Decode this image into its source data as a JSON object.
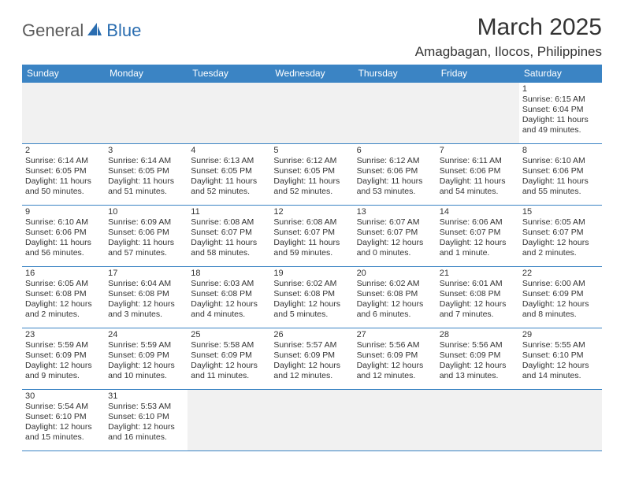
{
  "logo": {
    "textDark": "General",
    "textBlue": "Blue"
  },
  "title": "March 2025",
  "location": "Amagbagan, Ilocos, Philippines",
  "colors": {
    "headerBg": "#3b84c4",
    "headerText": "#ffffff",
    "cellBorder": "#3b84c4",
    "emptyBg": "#f1f1f1",
    "text": "#333333",
    "logoGray": "#5b5b5b",
    "logoBlue": "#2a6db0"
  },
  "daysOfWeek": [
    "Sunday",
    "Monday",
    "Tuesday",
    "Wednesday",
    "Thursday",
    "Friday",
    "Saturday"
  ],
  "leadingBlanks": 6,
  "days": [
    {
      "n": 1,
      "sunrise": "6:15 AM",
      "sunset": "6:04 PM",
      "daylight": "11 hours and 49 minutes."
    },
    {
      "n": 2,
      "sunrise": "6:14 AM",
      "sunset": "6:05 PM",
      "daylight": "11 hours and 50 minutes."
    },
    {
      "n": 3,
      "sunrise": "6:14 AM",
      "sunset": "6:05 PM",
      "daylight": "11 hours and 51 minutes."
    },
    {
      "n": 4,
      "sunrise": "6:13 AM",
      "sunset": "6:05 PM",
      "daylight": "11 hours and 52 minutes."
    },
    {
      "n": 5,
      "sunrise": "6:12 AM",
      "sunset": "6:05 PM",
      "daylight": "11 hours and 52 minutes."
    },
    {
      "n": 6,
      "sunrise": "6:12 AM",
      "sunset": "6:06 PM",
      "daylight": "11 hours and 53 minutes."
    },
    {
      "n": 7,
      "sunrise": "6:11 AM",
      "sunset": "6:06 PM",
      "daylight": "11 hours and 54 minutes."
    },
    {
      "n": 8,
      "sunrise": "6:10 AM",
      "sunset": "6:06 PM",
      "daylight": "11 hours and 55 minutes."
    },
    {
      "n": 9,
      "sunrise": "6:10 AM",
      "sunset": "6:06 PM",
      "daylight": "11 hours and 56 minutes."
    },
    {
      "n": 10,
      "sunrise": "6:09 AM",
      "sunset": "6:06 PM",
      "daylight": "11 hours and 57 minutes."
    },
    {
      "n": 11,
      "sunrise": "6:08 AM",
      "sunset": "6:07 PM",
      "daylight": "11 hours and 58 minutes."
    },
    {
      "n": 12,
      "sunrise": "6:08 AM",
      "sunset": "6:07 PM",
      "daylight": "11 hours and 59 minutes."
    },
    {
      "n": 13,
      "sunrise": "6:07 AM",
      "sunset": "6:07 PM",
      "daylight": "12 hours and 0 minutes."
    },
    {
      "n": 14,
      "sunrise": "6:06 AM",
      "sunset": "6:07 PM",
      "daylight": "12 hours and 1 minute."
    },
    {
      "n": 15,
      "sunrise": "6:05 AM",
      "sunset": "6:07 PM",
      "daylight": "12 hours and 2 minutes."
    },
    {
      "n": 16,
      "sunrise": "6:05 AM",
      "sunset": "6:08 PM",
      "daylight": "12 hours and 2 minutes."
    },
    {
      "n": 17,
      "sunrise": "6:04 AM",
      "sunset": "6:08 PM",
      "daylight": "12 hours and 3 minutes."
    },
    {
      "n": 18,
      "sunrise": "6:03 AM",
      "sunset": "6:08 PM",
      "daylight": "12 hours and 4 minutes."
    },
    {
      "n": 19,
      "sunrise": "6:02 AM",
      "sunset": "6:08 PM",
      "daylight": "12 hours and 5 minutes."
    },
    {
      "n": 20,
      "sunrise": "6:02 AM",
      "sunset": "6:08 PM",
      "daylight": "12 hours and 6 minutes."
    },
    {
      "n": 21,
      "sunrise": "6:01 AM",
      "sunset": "6:08 PM",
      "daylight": "12 hours and 7 minutes."
    },
    {
      "n": 22,
      "sunrise": "6:00 AM",
      "sunset": "6:09 PM",
      "daylight": "12 hours and 8 minutes."
    },
    {
      "n": 23,
      "sunrise": "5:59 AM",
      "sunset": "6:09 PM",
      "daylight": "12 hours and 9 minutes."
    },
    {
      "n": 24,
      "sunrise": "5:59 AM",
      "sunset": "6:09 PM",
      "daylight": "12 hours and 10 minutes."
    },
    {
      "n": 25,
      "sunrise": "5:58 AM",
      "sunset": "6:09 PM",
      "daylight": "12 hours and 11 minutes."
    },
    {
      "n": 26,
      "sunrise": "5:57 AM",
      "sunset": "6:09 PM",
      "daylight": "12 hours and 12 minutes."
    },
    {
      "n": 27,
      "sunrise": "5:56 AM",
      "sunset": "6:09 PM",
      "daylight": "12 hours and 12 minutes."
    },
    {
      "n": 28,
      "sunrise": "5:56 AM",
      "sunset": "6:09 PM",
      "daylight": "12 hours and 13 minutes."
    },
    {
      "n": 29,
      "sunrise": "5:55 AM",
      "sunset": "6:10 PM",
      "daylight": "12 hours and 14 minutes."
    },
    {
      "n": 30,
      "sunrise": "5:54 AM",
      "sunset": "6:10 PM",
      "daylight": "12 hours and 15 minutes."
    },
    {
      "n": 31,
      "sunrise": "5:53 AM",
      "sunset": "6:10 PM",
      "daylight": "12 hours and 16 minutes."
    }
  ],
  "labels": {
    "sunrise": "Sunrise:",
    "sunset": "Sunset:",
    "daylight": "Daylight:"
  }
}
